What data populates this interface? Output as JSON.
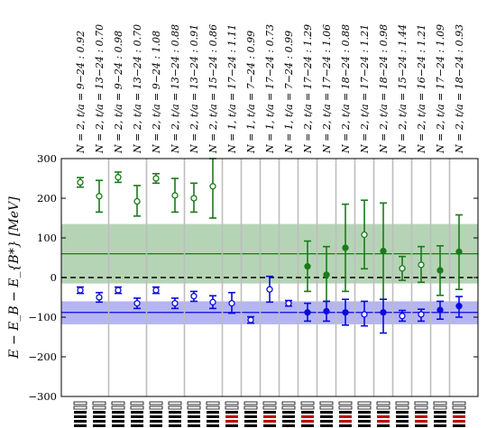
{
  "chart_data": {
    "type": "scatter",
    "ylabel": "E − E_B − E_{B*}  [MeV]",
    "ylim": [
      -300,
      300
    ],
    "yticks": [
      "300",
      "200",
      "100",
      "0",
      "−100",
      "−200",
      "−300"
    ],
    "ytick_values": [
      300,
      200,
      100,
      0,
      -100,
      -200,
      -300
    ],
    "grid": "vertical separators between fits",
    "fits": [
      {
        "label": "N = 2, t/a = 9−24 :   0.92",
        "gN": 2
      },
      {
        "label": "N = 2, t/a = 13−24 :  0.70",
        "gN": 2
      },
      {
        "label": "N = 2, t/a = 9−24 :   0.98",
        "gN": 2
      },
      {
        "label": "N = 2, t/a = 13−24 :  0.70",
        "gN": 2
      },
      {
        "label": "N = 2, t/a = 9−24 :   1.08",
        "gN": 2
      },
      {
        "label": "N = 2, t/a = 13−24 :  0.88",
        "gN": 2
      },
      {
        "label": "N = 2, t/a = 13−24 :  0.91",
        "gN": 2
      },
      {
        "label": "N = 2, t/a = 15−24 :  0.86",
        "gN": 2
      },
      {
        "label": "N = 1, t/a = 17−24 :  1.11",
        "gN": 1
      },
      {
        "label": "N = 1, t/a = 7−24 :   0.99",
        "gN": 1
      },
      {
        "label": "N = 1, t/a = 17−24 :  0.73",
        "gN": 1
      },
      {
        "label": "N = 1, t/a = 7−24 :   0.99",
        "gN": 1
      },
      {
        "label": "N = 2, t/a = 17−24 :  1.29",
        "gN": 2
      },
      {
        "label": "N = 2, t/a = 17−24 :  1.06",
        "gN": 2
      },
      {
        "label": "N = 2, t/a = 18−24 :  0.88",
        "gN": 2
      },
      {
        "label": "N = 2, t/a = 17−24 :  1.21",
        "gN": 2
      },
      {
        "label": "N = 2, t/a = 18−24 :  0.98",
        "gN": 2
      },
      {
        "label": "N = 2, t/a = 15−24 :  1.44",
        "gN": 2
      },
      {
        "label": "N = 2, t/a = 16−24 :  1.21",
        "gN": 2
      },
      {
        "label": "N = 2, t/a = 17−24 :  1.09",
        "gN": 2
      },
      {
        "label": "N = 2, t/a = 18−24 :  0.93",
        "gN": 2
      }
    ],
    "series": [
      {
        "color": "#1a7a1a",
        "points": [
          {
            "x": 1.0,
            "y": 240,
            "lo": 228,
            "hi": 252,
            "filled": false
          },
          {
            "x": 2.0,
            "y": 205,
            "lo": 165,
            "hi": 245,
            "filled": false
          },
          {
            "x": 3.0,
            "y": 253,
            "lo": 240,
            "hi": 266,
            "filled": false
          },
          {
            "x": 4.0,
            "y": 192,
            "lo": 155,
            "hi": 232,
            "filled": false
          },
          {
            "x": 5.0,
            "y": 250,
            "lo": 238,
            "hi": 262,
            "filled": false
          },
          {
            "x": 6.0,
            "y": 207,
            "lo": 165,
            "hi": 250,
            "filled": false
          },
          {
            "x": 7.0,
            "y": 200,
            "lo": 165,
            "hi": 238,
            "filled": false
          },
          {
            "x": 8.0,
            "y": 230,
            "lo": 150,
            "hi": 300,
            "filled": false
          },
          {
            "x": 13.0,
            "y": 28,
            "lo": -35,
            "hi": 92,
            "filled": true
          },
          {
            "x": 14.0,
            "y": 7,
            "lo": -60,
            "hi": 78,
            "filled": true
          },
          {
            "x": 15.0,
            "y": 75,
            "lo": -35,
            "hi": 185,
            "filled": true
          },
          {
            "x": 16.0,
            "y": 108,
            "lo": 22,
            "hi": 195,
            "filled": false
          },
          {
            "x": 17.0,
            "y": 67,
            "lo": -55,
            "hi": 188,
            "filled": true
          },
          {
            "x": 18.0,
            "y": 23,
            "lo": -7,
            "hi": 53,
            "filled": false
          },
          {
            "x": 19.0,
            "y": 32,
            "lo": -12,
            "hi": 78,
            "filled": false
          },
          {
            "x": 20.0,
            "y": 18,
            "lo": -45,
            "hi": 80,
            "filled": true
          },
          {
            "x": 21.0,
            "y": 65,
            "lo": -30,
            "hi": 158,
            "filled": true
          }
        ]
      },
      {
        "color": "#0a0adc",
        "points": [
          {
            "x": 1.0,
            "y": -32,
            "lo": -40,
            "hi": -24,
            "filled": false
          },
          {
            "x": 2.0,
            "y": -50,
            "lo": -62,
            "hi": -38,
            "filled": false
          },
          {
            "x": 3.0,
            "y": -32,
            "lo": -40,
            "hi": -24,
            "filled": false
          },
          {
            "x": 4.0,
            "y": -65,
            "lo": -78,
            "hi": -52,
            "filled": false
          },
          {
            "x": 5.0,
            "y": -32,
            "lo": -40,
            "hi": -24,
            "filled": false
          },
          {
            "x": 6.0,
            "y": -65,
            "lo": -78,
            "hi": -52,
            "filled": false
          },
          {
            "x": 7.0,
            "y": -47,
            "lo": -60,
            "hi": -35,
            "filled": false
          },
          {
            "x": 8.0,
            "y": -62,
            "lo": -78,
            "hi": -46,
            "filled": false
          },
          {
            "x": 9.0,
            "y": -65,
            "lo": -90,
            "hi": -38,
            "filled": false
          },
          {
            "x": 10.0,
            "y": -107,
            "lo": -115,
            "hi": -99,
            "filled": false
          },
          {
            "x": 11.0,
            "y": -30,
            "lo": -62,
            "hi": 3,
            "filled": false
          },
          {
            "x": 12.0,
            "y": -65,
            "lo": -72,
            "hi": -58,
            "filled": false
          },
          {
            "x": 13.0,
            "y": -88,
            "lo": -110,
            "hi": -65,
            "filled": true
          },
          {
            "x": 14.0,
            "y": -85,
            "lo": -110,
            "hi": -60,
            "filled": true
          },
          {
            "x": 15.0,
            "y": -88,
            "lo": -120,
            "hi": -55,
            "filled": true
          },
          {
            "x": 16.0,
            "y": -93,
            "lo": -122,
            "hi": -60,
            "filled": false
          },
          {
            "x": 17.0,
            "y": -88,
            "lo": -140,
            "hi": -55,
            "filled": true
          },
          {
            "x": 18.0,
            "y": -97,
            "lo": -110,
            "hi": -83,
            "filled": false
          },
          {
            "x": 19.0,
            "y": -93,
            "lo": -110,
            "hi": -80,
            "filled": false
          },
          {
            "x": 20.0,
            "y": -82,
            "lo": -105,
            "hi": -60,
            "filled": true
          },
          {
            "x": 21.0,
            "y": -72,
            "lo": -100,
            "hi": -48,
            "filled": true
          }
        ]
      }
    ],
    "bands": [
      {
        "color": "#1a7a1a",
        "center": 60,
        "lo": -15,
        "hi": 135
      },
      {
        "color": "#0a0adc",
        "center": -88,
        "lo": -118,
        "hi": -60
      }
    ],
    "reference_line": {
      "y": 0,
      "style": "dashed",
      "color": "#000000"
    },
    "group_separators_after": [
      2,
      4,
      6,
      8,
      9,
      10,
      11,
      12,
      13,
      14,
      15,
      16,
      17,
      18,
      19,
      20
    ]
  }
}
